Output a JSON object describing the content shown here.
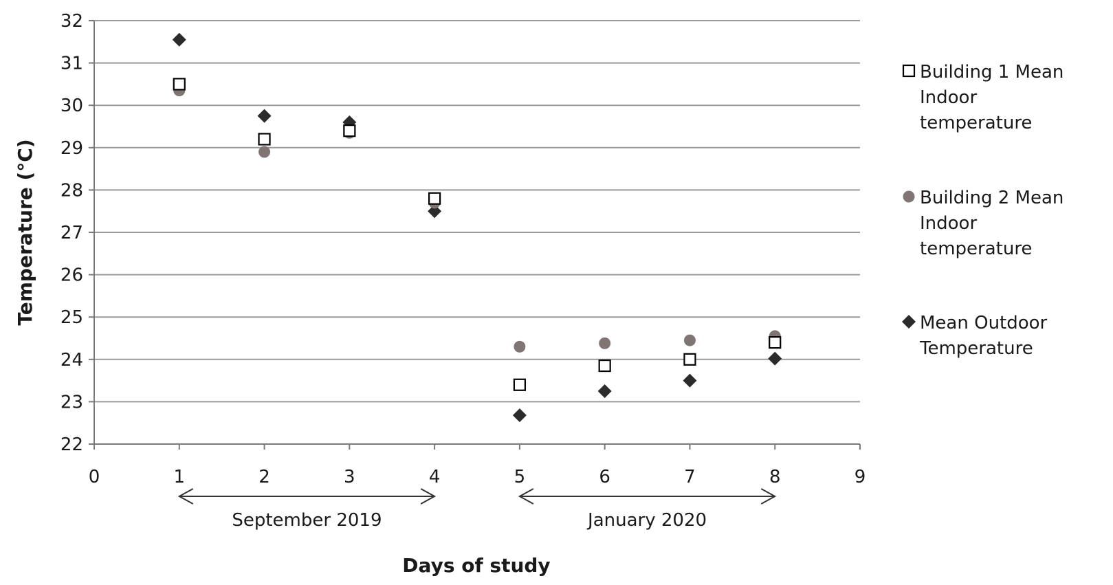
{
  "chart_data": {
    "type": "scatter",
    "xlabel": "Days of study",
    "ylabel": "Temperature (°C)",
    "xlim": [
      0,
      9
    ],
    "ylim": [
      22,
      32
    ],
    "x_ticks": [
      0,
      1,
      2,
      3,
      4,
      5,
      6,
      7,
      8,
      9
    ],
    "y_ticks": [
      22,
      23,
      24,
      25,
      26,
      27,
      28,
      29,
      30,
      31,
      32
    ],
    "grid": "horizontal",
    "legend_position": "right",
    "series": [
      {
        "name": "Building 1 Mean Indoor temperature",
        "marker": "open-square",
        "color": "#000000",
        "points": [
          {
            "x": 1,
            "y": 30.5
          },
          {
            "x": 2,
            "y": 29.2
          },
          {
            "x": 3,
            "y": 29.4
          },
          {
            "x": 4,
            "y": 27.8
          },
          {
            "x": 5,
            "y": 23.4
          },
          {
            "x": 6,
            "y": 23.85
          },
          {
            "x": 7,
            "y": 24.0
          },
          {
            "x": 8,
            "y": 24.4
          }
        ]
      },
      {
        "name": "Building 2 Mean Indoor temperature",
        "marker": "circle",
        "color": "#807575",
        "points": [
          {
            "x": 1,
            "y": 30.35
          },
          {
            "x": 2,
            "y": 28.9
          },
          {
            "x": 3,
            "y": 29.35
          },
          {
            "x": 4,
            "y": 27.7
          },
          {
            "x": 5,
            "y": 24.3
          },
          {
            "x": 6,
            "y": 24.38
          },
          {
            "x": 7,
            "y": 24.45
          },
          {
            "x": 8,
            "y": 24.55
          }
        ]
      },
      {
        "name": "Mean Outdoor Temperature",
        "marker": "diamond",
        "color": "#2b2b2b",
        "points": [
          {
            "x": 1,
            "y": 31.55
          },
          {
            "x": 2,
            "y": 29.75
          },
          {
            "x": 3,
            "y": 29.6
          },
          {
            "x": 4,
            "y": 27.5
          },
          {
            "x": 5,
            "y": 22.68
          },
          {
            "x": 6,
            "y": 23.25
          },
          {
            "x": 7,
            "y": 23.5
          },
          {
            "x": 8,
            "y": 24.02
          }
        ]
      }
    ],
    "legend_lines": [
      [
        "Building 1 Mean",
        "Indoor",
        "temperature"
      ],
      [
        "Building 2 Mean",
        "Indoor",
        "temperature"
      ],
      [
        "Mean Outdoor",
        "Temperature"
      ]
    ],
    "annotations": [
      {
        "label": "September 2019",
        "x_from": 1,
        "x_to": 4
      },
      {
        "label": "January 2020",
        "x_from": 5,
        "x_to": 8
      }
    ]
  }
}
